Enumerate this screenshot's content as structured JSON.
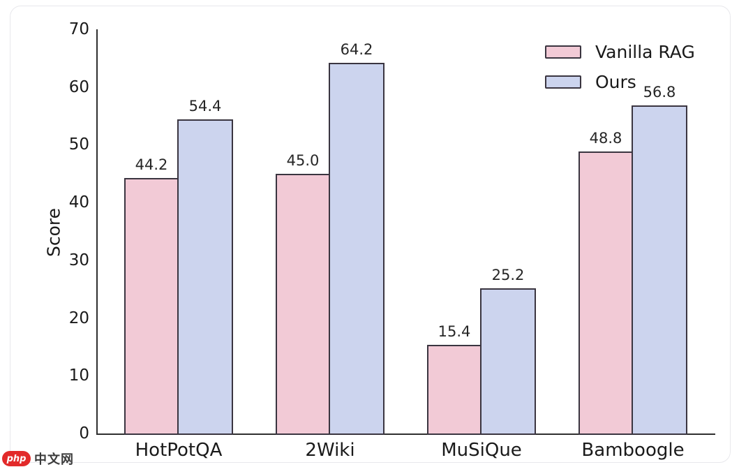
{
  "chart_data": {
    "type": "bar",
    "categories": [
      "HotPotQA",
      "2Wiki",
      "MuSiQue",
      "Bamboogle"
    ],
    "series": [
      {
        "name": "Vanilla RAG",
        "color": "#f2cad6",
        "values": [
          44.2,
          45.0,
          15.4,
          48.8
        ]
      },
      {
        "name": "Ours",
        "color": "#ccd4ee",
        "values": [
          54.4,
          64.2,
          25.2,
          56.8
        ]
      }
    ],
    "title": "",
    "xlabel": "",
    "ylabel": "Score",
    "ylim": [
      0,
      70
    ],
    "yticks": [
      0,
      10,
      20,
      30,
      40,
      50,
      60,
      70
    ],
    "legend_position": "upper right",
    "grid": false,
    "value_labels": true,
    "bar_edge_color": "#3a3540"
  },
  "watermark": {
    "logo_text": "php",
    "site_text": "中文网",
    "logo_color": "#e22a2a"
  }
}
